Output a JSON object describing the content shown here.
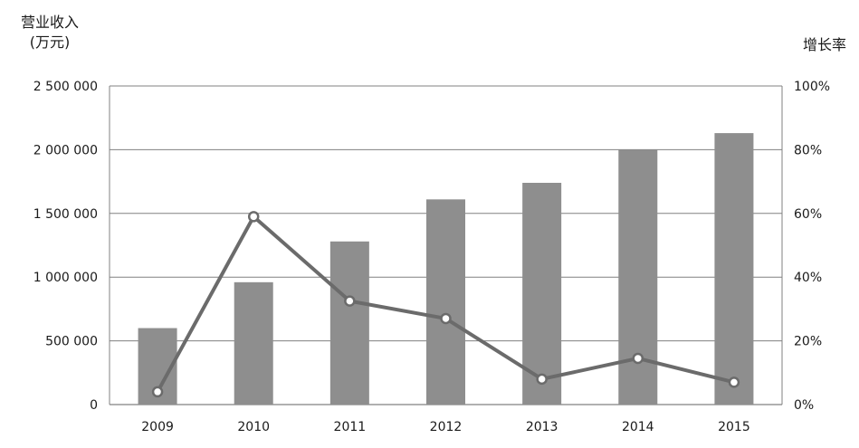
{
  "chart_data": {
    "type": "bar",
    "categories": [
      "2009",
      "2010",
      "2011",
      "2012",
      "2013",
      "2014",
      "2015"
    ],
    "series": [
      {
        "name": "营业收入",
        "type": "bar",
        "axis": "left",
        "values": [
          600000,
          960000,
          1280000,
          1610000,
          1740000,
          2000000,
          2130000
        ]
      },
      {
        "name": "增长率",
        "type": "line",
        "axis": "right",
        "values": [
          4,
          59,
          32.5,
          27,
          8,
          14.5,
          7
        ]
      }
    ],
    "ylabel_left_line1": "营业收入",
    "ylabel_left_line2": "(万元)",
    "ylabel_right": "增长率",
    "ylim_left": [
      0,
      2500000
    ],
    "ylim_right": [
      0,
      100
    ],
    "left_ticks": [
      "0",
      "500 000",
      "1 000 000",
      "1 500 000",
      "2 000 000",
      "2 500 000"
    ],
    "right_ticks": [
      "0%",
      "20%",
      "40%",
      "60%",
      "80%",
      "100%"
    ],
    "grid": true,
    "colors": {
      "bar": "#8e8e8e",
      "line": "#6b6b6b",
      "marker_fill": "#ffffff",
      "grid": "#808080"
    }
  }
}
